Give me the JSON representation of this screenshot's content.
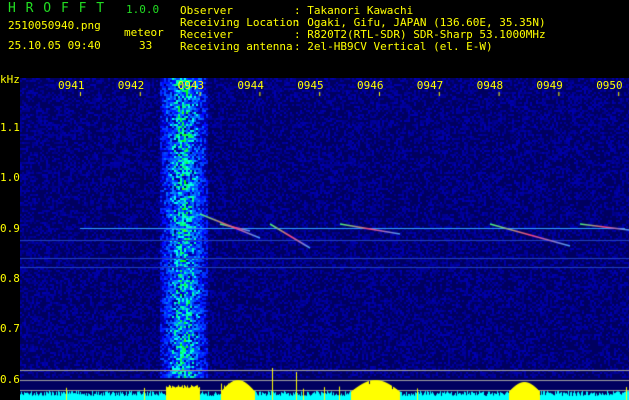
{
  "app": {
    "name": "H R O F F T",
    "version": "1.0.0"
  },
  "file": {
    "name": "2510050940.png",
    "datetime": "25.10.05 09:40"
  },
  "meteor": {
    "label": "meteor",
    "count": "33"
  },
  "info": [
    {
      "label": "Observer",
      "value": ": Takanori Kawachi"
    },
    {
      "label": "Receiving Location",
      "value": ": Ogaki, Gifu, JAPAN (136.60E, 35.35N)"
    },
    {
      "label": "Receiver",
      "value": ": R820T2(RTL-SDR) SDR-Sharp 53.1000MHz"
    },
    {
      "label": "Receiving antenna",
      "value": ": 2el-HB9CV Vertical (el. E-W)"
    }
  ],
  "axis": {
    "unit": "kHz",
    "time_labels": [
      "0941",
      "0942",
      "0943",
      "0944",
      "0945",
      "0946",
      "0947",
      "0948",
      "0949",
      "0950"
    ],
    "freq_labels": [
      "1.1",
      "1.0",
      "0.9",
      "0.8",
      "0.7",
      "0.6"
    ]
  },
  "colors": {
    "text": "#ffff00",
    "title": "#22dd22",
    "histogram": "#00ffff",
    "peaks": "#ffff00"
  }
}
